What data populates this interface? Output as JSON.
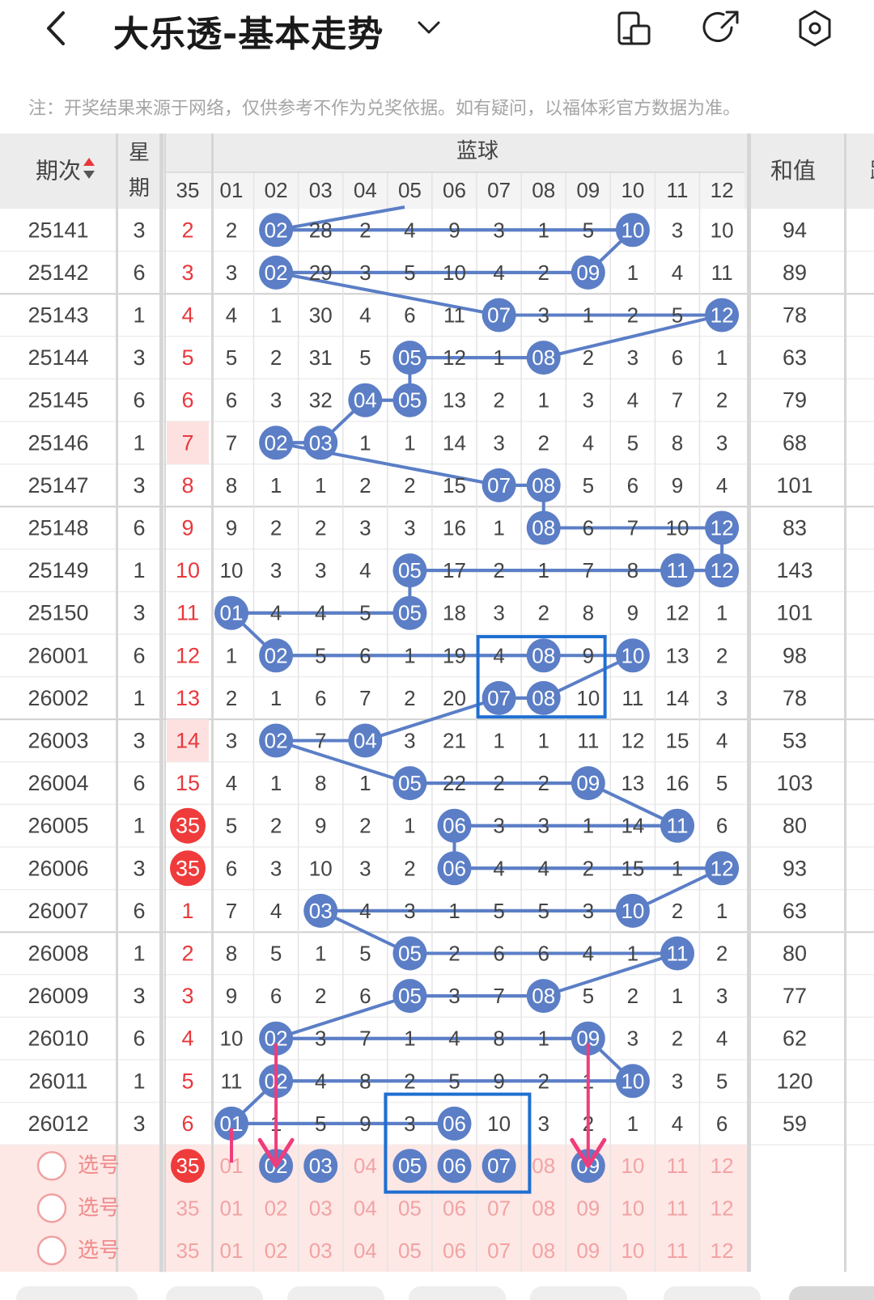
{
  "header": {
    "title": "大乐透-基本走势",
    "icons": [
      "back-arrow-icon",
      "chevron-down-icon",
      "device-icon",
      "share-icon",
      "settings-hexagon-icon"
    ]
  },
  "note": "注：开奖结果来源于网络，仅供参考不作为兑奖依据。如有疑问，以福体彩官方数据为准。",
  "table": {
    "col_headers": {
      "issue": "期次",
      "weekday_top": "星",
      "weekday_bottom": "期",
      "blue_group": "蓝球",
      "sum": "和值",
      "miss_col": "35",
      "blue_numbers": [
        "01",
        "02",
        "03",
        "04",
        "05",
        "06",
        "07",
        "08",
        "09",
        "10",
        "11",
        "12"
      ],
      "extra_cut": "跳"
    },
    "rows": [
      {
        "issue": "25141",
        "week": "3",
        "m": "2",
        "cells": [
          "2",
          "02",
          "28",
          "2",
          "4",
          "9",
          "3",
          "1",
          "5",
          "10",
          "3",
          "10"
        ],
        "sum": "94"
      },
      {
        "issue": "25142",
        "week": "6",
        "m": "3",
        "cells": [
          "3",
          "02",
          "29",
          "3",
          "5",
          "10",
          "4",
          "2",
          "09",
          "1",
          "4",
          "11"
        ],
        "sum": "89"
      },
      {
        "issue": "25143",
        "week": "1",
        "m": "4",
        "cells": [
          "4",
          "1",
          "30",
          "4",
          "6",
          "11",
          "07",
          "3",
          "1",
          "2",
          "5",
          "12"
        ],
        "sum": "78"
      },
      {
        "issue": "25144",
        "week": "3",
        "m": "5",
        "cells": [
          "5",
          "2",
          "31",
          "5",
          "05",
          "12",
          "1",
          "08",
          "2",
          "3",
          "6",
          "1"
        ],
        "sum": "63"
      },
      {
        "issue": "25145",
        "week": "6",
        "m": "6",
        "cells": [
          "6",
          "3",
          "32",
          "04",
          "05",
          "13",
          "2",
          "1",
          "3",
          "4",
          "7",
          "2"
        ],
        "sum": "79"
      },
      {
        "issue": "25146",
        "week": "1",
        "m": "7",
        "cells": [
          "7",
          "02",
          "03",
          "1",
          "1",
          "14",
          "3",
          "2",
          "4",
          "5",
          "8",
          "3"
        ],
        "sum": "68"
      },
      {
        "issue": "25147",
        "week": "3",
        "m": "8",
        "cells": [
          "8",
          "1",
          "1",
          "2",
          "2",
          "15",
          "07",
          "08",
          "5",
          "6",
          "9",
          "4"
        ],
        "sum": "101"
      },
      {
        "issue": "25148",
        "week": "6",
        "m": "9",
        "cells": [
          "9",
          "2",
          "2",
          "3",
          "3",
          "16",
          "1",
          "08",
          "6",
          "7",
          "10",
          "12"
        ],
        "sum": "83"
      },
      {
        "issue": "25149",
        "week": "1",
        "m": "10",
        "cells": [
          "10",
          "3",
          "3",
          "4",
          "05",
          "17",
          "2",
          "1",
          "7",
          "8",
          "11",
          "12"
        ],
        "sum": "143"
      },
      {
        "issue": "25150",
        "week": "3",
        "m": "11",
        "cells": [
          "01",
          "4",
          "4",
          "5",
          "05",
          "18",
          "3",
          "2",
          "8",
          "9",
          "12",
          "1"
        ],
        "sum": "101"
      },
      {
        "issue": "26001",
        "week": "6",
        "m": "12",
        "cells": [
          "1",
          "02",
          "5",
          "6",
          "1",
          "19",
          "4",
          "08",
          "9",
          "10",
          "13",
          "2"
        ],
        "sum": "98"
      },
      {
        "issue": "26002",
        "week": "1",
        "m": "13",
        "cells": [
          "2",
          "1",
          "6",
          "7",
          "2",
          "20",
          "07",
          "08",
          "10",
          "11",
          "14",
          "3"
        ],
        "sum": "78"
      },
      {
        "issue": "26003",
        "week": "3",
        "m": "14",
        "cells": [
          "3",
          "02",
          "7",
          "04",
          "3",
          "21",
          "1",
          "1",
          "11",
          "12",
          "15",
          "4"
        ],
        "sum": "53"
      },
      {
        "issue": "26004",
        "week": "6",
        "m": "15",
        "cells": [
          "4",
          "1",
          "8",
          "1",
          "05",
          "22",
          "2",
          "2",
          "09",
          "13",
          "16",
          "5"
        ],
        "sum": "103"
      },
      {
        "issue": "26005",
        "week": "1",
        "m": "35",
        "cells": [
          "5",
          "2",
          "9",
          "2",
          "1",
          "06",
          "3",
          "3",
          "1",
          "14",
          "11",
          "6"
        ],
        "sum": "80"
      },
      {
        "issue": "26006",
        "week": "3",
        "m": "35",
        "cells": [
          "6",
          "3",
          "10",
          "3",
          "2",
          "06",
          "4",
          "4",
          "2",
          "15",
          "1",
          "12"
        ],
        "sum": "93"
      },
      {
        "issue": "26007",
        "week": "6",
        "m": "1",
        "cells": [
          "7",
          "4",
          "03",
          "4",
          "3",
          "1",
          "5",
          "5",
          "3",
          "10",
          "2",
          "1"
        ],
        "sum": "63"
      },
      {
        "issue": "26008",
        "week": "1",
        "m": "2",
        "cells": [
          "8",
          "5",
          "1",
          "5",
          "05",
          "2",
          "6",
          "6",
          "4",
          "1",
          "11",
          "2"
        ],
        "sum": "80"
      },
      {
        "issue": "26009",
        "week": "3",
        "m": "3",
        "cells": [
          "9",
          "6",
          "2",
          "6",
          "05",
          "3",
          "7",
          "08",
          "5",
          "2",
          "1",
          "3"
        ],
        "sum": "77"
      },
      {
        "issue": "26010",
        "week": "6",
        "m": "4",
        "cells": [
          "10",
          "02",
          "3",
          "7",
          "1",
          "4",
          "8",
          "1",
          "09",
          "3",
          "2",
          "4"
        ],
        "sum": "62"
      },
      {
        "issue": "26011",
        "week": "1",
        "m": "5",
        "cells": [
          "11",
          "02",
          "4",
          "8",
          "2",
          "5",
          "9",
          "2",
          "1",
          "10",
          "3",
          "5"
        ],
        "sum": "120"
      },
      {
        "issue": "26012",
        "week": "3",
        "m": "6",
        "cells": [
          "01",
          "1",
          "5",
          "9",
          "3",
          "06",
          "10",
          "3",
          "2",
          "1",
          "4",
          "6"
        ],
        "sum": "59"
      }
    ],
    "selection_rows": [
      {
        "label": "选号",
        "m": "35",
        "cells": [
          "01",
          "02",
          "03",
          "04",
          "05",
          "06",
          "07",
          "08",
          "09",
          "10",
          "11",
          "12"
        ],
        "selected_m": true,
        "selected": [
          "02",
          "03",
          "05",
          "06",
          "07",
          "09"
        ]
      },
      {
        "label": "选号",
        "m": "35",
        "cells": [
          "01",
          "02",
          "03",
          "04",
          "05",
          "06",
          "07",
          "08",
          "09",
          "10",
          "11",
          "12"
        ],
        "selected_m": false,
        "selected": []
      },
      {
        "label": "选号",
        "m": "35",
        "cells": [
          "01",
          "02",
          "03",
          "04",
          "05",
          "06",
          "07",
          "08",
          "09",
          "10",
          "11",
          "12"
        ],
        "selected_m": false,
        "selected": []
      }
    ]
  },
  "annotations": {
    "boxes": [
      {
        "name": "box-08-26001-26002",
        "cols": [
          "07",
          "09"
        ],
        "rows": [
          "26001",
          "26002"
        ]
      },
      {
        "name": "box-05-07-selection",
        "cols": [
          "05",
          "07"
        ],
        "rows": [
          "26012",
          "选号-2"
        ]
      }
    ],
    "arrows": [
      {
        "name": "arrow-02",
        "col": "02"
      },
      {
        "name": "arrow-09",
        "col": "09"
      }
    ]
  },
  "colors": {
    "ball_blue": "#5b7ec6",
    "ball_red": "#ef3b3b",
    "line_blue": "#5b7ec6",
    "miss_red": "#e8383d",
    "highlight_bg": "#fde8e6",
    "header_bg": "#ececec",
    "annot_box": "#1f6fd1",
    "arrow_pink": "#ef3c7c",
    "select_text": "#f2a3a3"
  }
}
